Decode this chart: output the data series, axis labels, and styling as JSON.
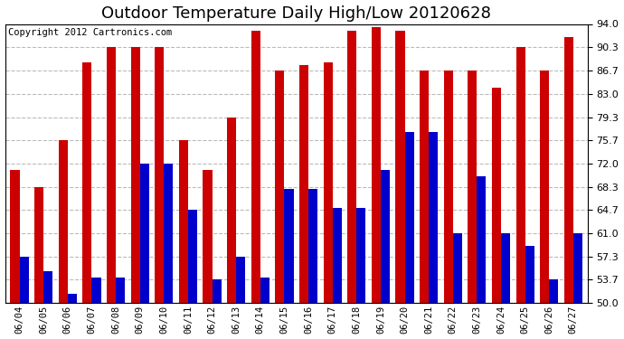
{
  "title": "Outdoor Temperature Daily High/Low 20120628",
  "copyright": "Copyright 2012 Cartronics.com",
  "dates": [
    "06/04",
    "06/05",
    "06/06",
    "06/07",
    "06/08",
    "06/09",
    "06/10",
    "06/11",
    "06/12",
    "06/13",
    "06/14",
    "06/15",
    "06/16",
    "06/17",
    "06/18",
    "06/19",
    "06/20",
    "06/21",
    "06/22",
    "06/23",
    "06/24",
    "06/25",
    "06/26",
    "06/27"
  ],
  "highs": [
    71.0,
    68.3,
    75.7,
    88.0,
    90.3,
    90.3,
    90.3,
    75.7,
    71.0,
    79.3,
    93.0,
    86.7,
    87.5,
    88.0,
    93.0,
    93.5,
    93.0,
    86.7,
    86.7,
    86.7,
    84.0,
    90.3,
    86.7,
    92.0
  ],
  "lows": [
    57.3,
    55.0,
    51.5,
    54.0,
    54.0,
    72.0,
    72.0,
    64.7,
    53.7,
    57.3,
    54.0,
    68.0,
    68.0,
    65.0,
    65.0,
    71.0,
    77.0,
    77.0,
    61.0,
    70.0,
    61.0,
    59.0,
    53.7,
    61.0
  ],
  "high_color": "#cc0000",
  "low_color": "#0000cc",
  "bg_color": "#ffffff",
  "grid_color": "#bbbbbb",
  "ylim_min": 50.0,
  "ylim_max": 94.0,
  "yticks": [
    50.0,
    53.7,
    57.3,
    61.0,
    64.7,
    68.3,
    72.0,
    75.7,
    79.3,
    83.0,
    86.7,
    90.3,
    94.0
  ],
  "title_fontsize": 13,
  "copyright_fontsize": 7.5,
  "bar_width": 0.38
}
